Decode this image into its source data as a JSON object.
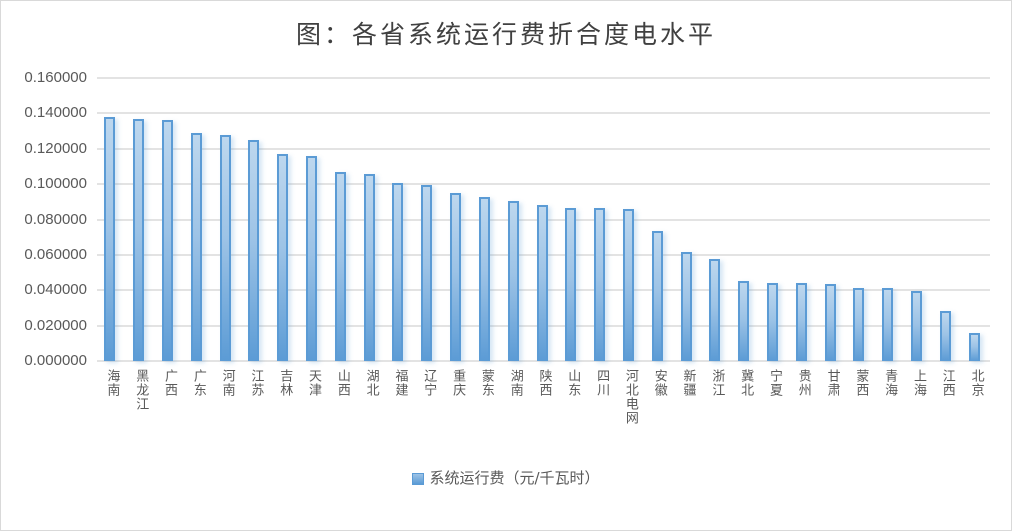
{
  "chart_data": {
    "type": "bar",
    "title": "图：各省系统运行费折合度电水平",
    "xlabel": "",
    "ylabel": "",
    "ylim": [
      0,
      0.16
    ],
    "yticks": [
      "0.000000",
      "0.020000",
      "0.040000",
      "0.060000",
      "0.080000",
      "0.100000",
      "0.120000",
      "0.140000",
      "0.160000"
    ],
    "grid": true,
    "legend_position": "bottom",
    "categories": [
      "海南",
      "黑龙江",
      "广西",
      "广东",
      "河南",
      "江苏",
      "吉林",
      "天津",
      "山西",
      "湖北",
      "福建",
      "辽宁",
      "重庆",
      "蒙东",
      "湖南",
      "陕西",
      "山东",
      "四川",
      "河北电网",
      "安徽",
      "新疆",
      "浙江",
      "冀北",
      "宁夏",
      "贵州",
      "甘肃",
      "蒙西",
      "青海",
      "上海",
      "江西",
      "北京"
    ],
    "series": [
      {
        "name": "系统运行费（元/千瓦时）",
        "color": "#5b9bd5",
        "values": [
          0.138,
          0.137,
          0.136,
          0.129,
          0.128,
          0.125,
          0.117,
          0.116,
          0.107,
          0.106,
          0.1005,
          0.0995,
          0.095,
          0.093,
          0.0905,
          0.088,
          0.0865,
          0.0865,
          0.086,
          0.0735,
          0.0615,
          0.0575,
          0.045,
          0.044,
          0.044,
          0.0435,
          0.0415,
          0.0415,
          0.0395,
          0.0285,
          0.016
        ]
      }
    ]
  },
  "legend": {
    "label": "系统运行费（元/千瓦时）"
  }
}
